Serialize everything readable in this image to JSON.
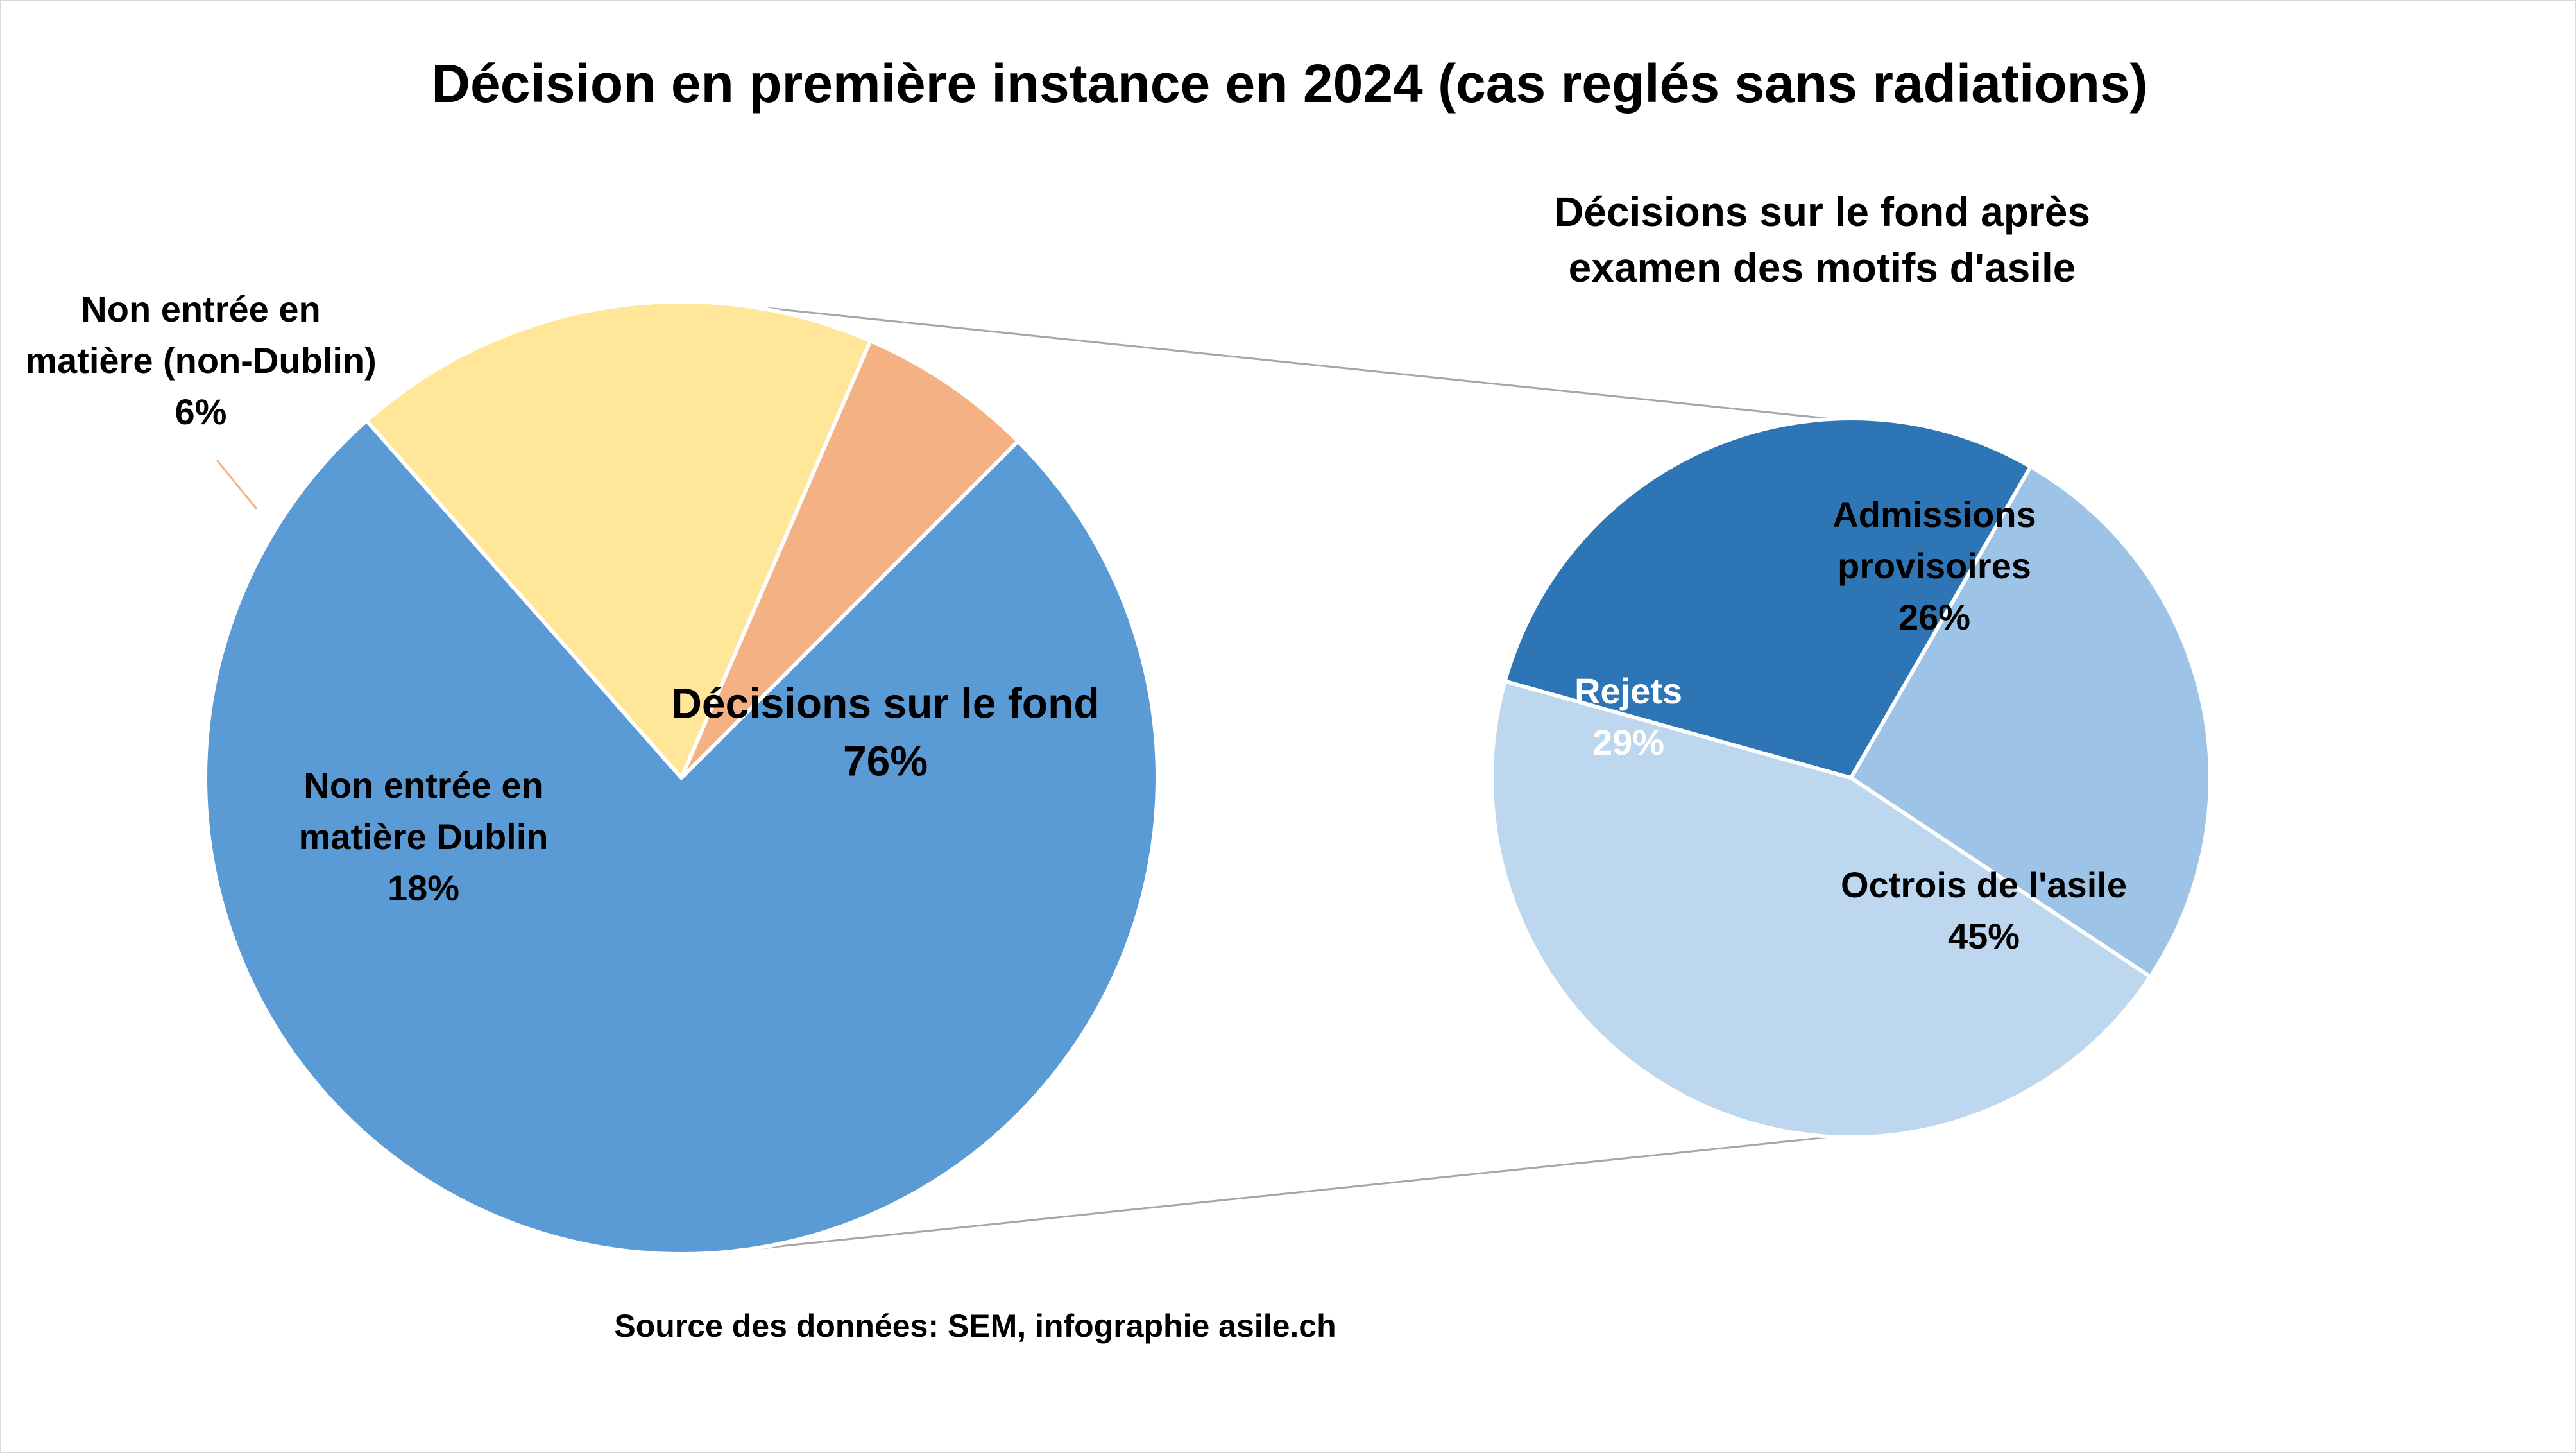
{
  "chart_data": [
    {
      "type": "pie",
      "title": "Décision en première instance en 2024  (cas reglés sans radiations)",
      "slices": [
        {
          "label": [
            "Décisions sur le fond"
          ],
          "value": 76,
          "display": "76%",
          "color": "#5b9bd5"
        },
        {
          "label": [
            "Non entrée en",
            "matière Dublin"
          ],
          "value": 18,
          "display": "18%",
          "color": "#ffe699"
        },
        {
          "label": [
            "Non entrée en",
            "matière (non-Dublin)"
          ],
          "value": 6,
          "display": "6%",
          "color": "#f4b183"
        }
      ]
    },
    {
      "type": "pie",
      "title": [
        "Décisions sur le fond après",
        "examen des motifs d'asile"
      ],
      "slices": [
        {
          "label": [
            "Admissions",
            "provisoires"
          ],
          "value": 26,
          "display": "26%",
          "color": "#9dc3e6"
        },
        {
          "label": [
            "Octrois de l'asile"
          ],
          "value": 45,
          "display": "45%",
          "color": "#bdd7ee"
        },
        {
          "label": [
            "Rejets"
          ],
          "value": 29,
          "display": "29%",
          "color": "#2e75b6",
          "text_color": "#ffffff"
        }
      ]
    }
  ],
  "source": "Source des données: SEM, infographie asile.ch",
  "colors": {
    "connector": "#a6a6a6",
    "label_text": "#000000",
    "leader": "#f4b183"
  }
}
